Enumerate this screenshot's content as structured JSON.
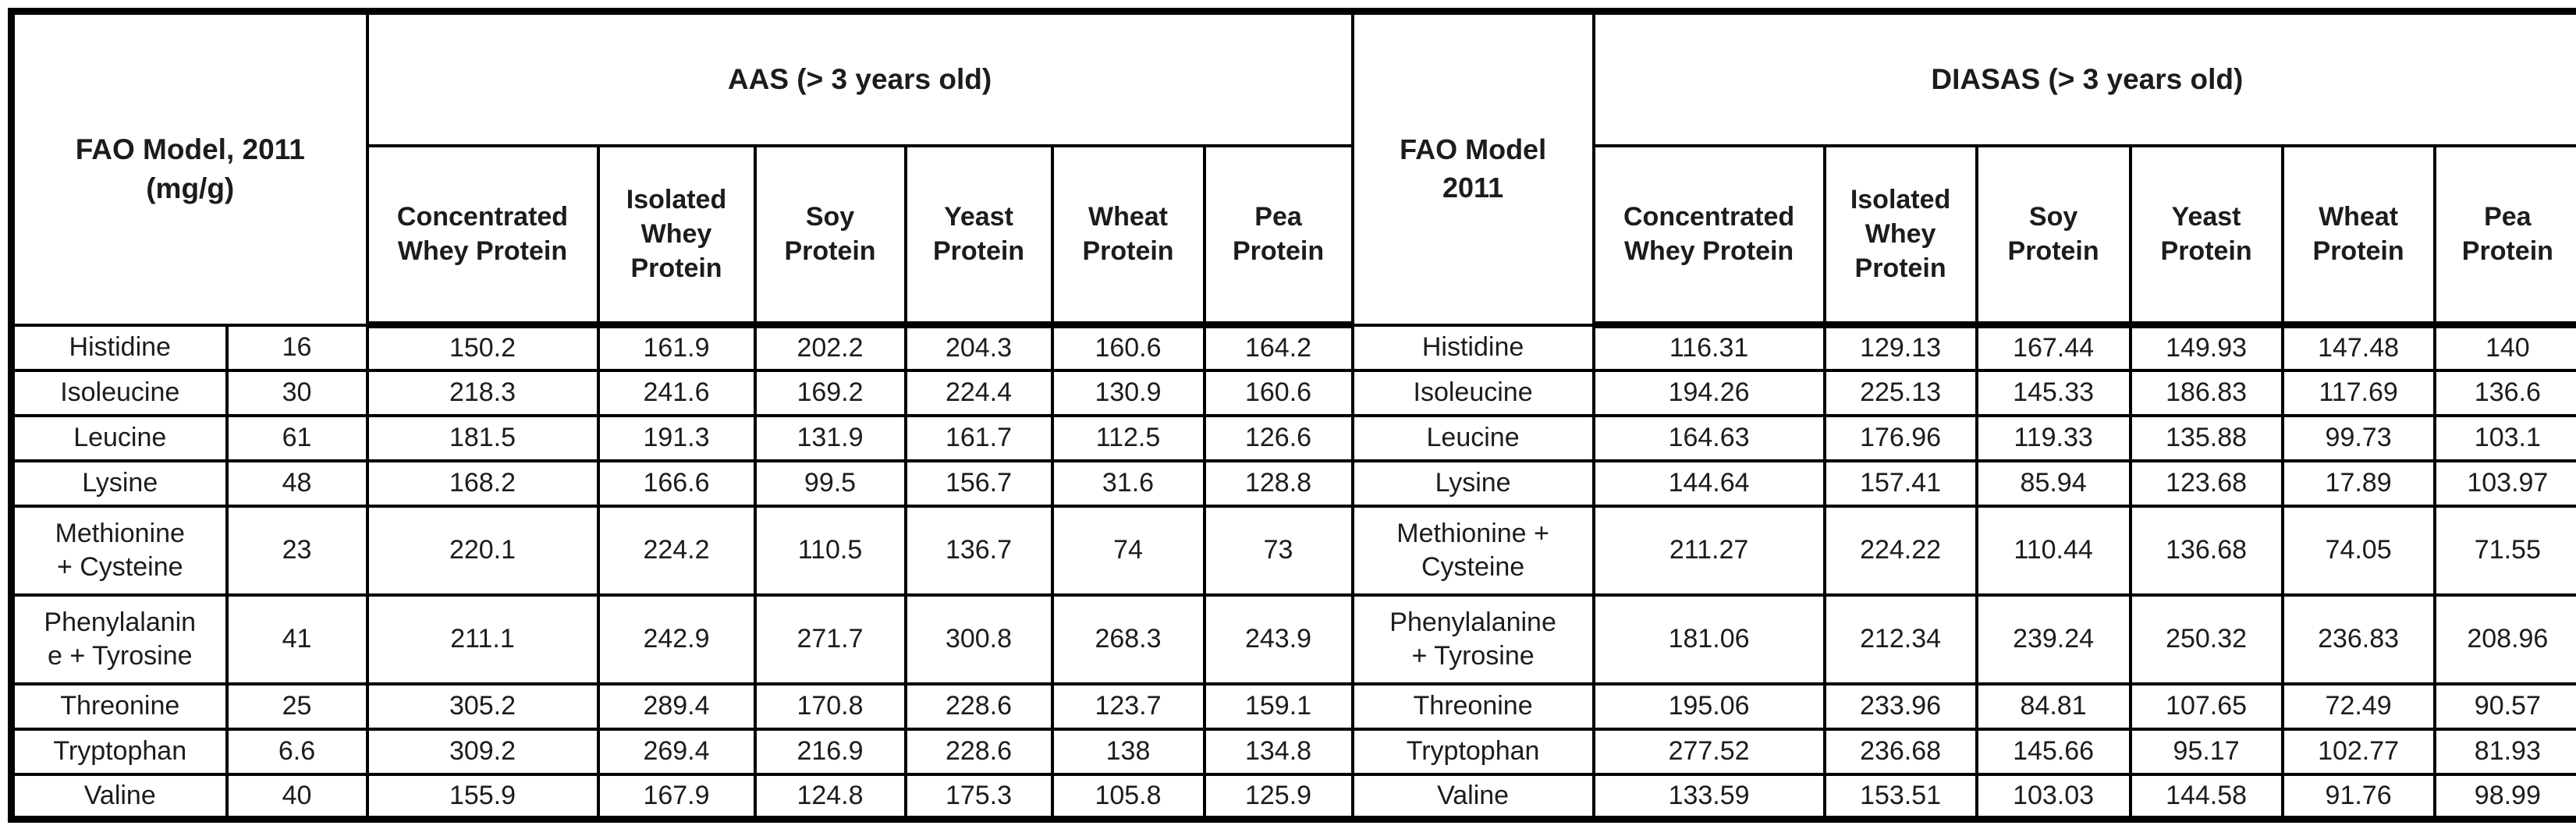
{
  "table": {
    "left_header": "FAO Model, 2011\n(mg/g)",
    "middle_header": "FAO Model\n2011",
    "groups": {
      "aas": "AAS (> 3 years old)",
      "diasas": "DIASAS (> 3 years old)"
    },
    "aas_columns": [
      "Concentrated\nWhey Protein",
      "Isolated\nWhey\nProtein",
      "Soy\nProtein",
      "Yeast\nProtein",
      "Wheat\nProtein",
      "Pea\nProtein"
    ],
    "diasas_columns": [
      "Concentrated\nWhey Protein",
      "Isolated\nWhey\nProtein",
      "Soy\nProtein",
      "Yeast\nProtein",
      "Wheat\nProtein",
      "Pea\nProtein"
    ],
    "rows": [
      {
        "name": "Histidine",
        "fao": "16",
        "aas": [
          "150.2",
          "161.9",
          "202.2",
          "204.3",
          "160.6",
          "164.2"
        ],
        "name_middle": "Histidine",
        "diasas": [
          "116.31",
          "129.13",
          "167.44",
          "149.93",
          "147.48",
          "140"
        ]
      },
      {
        "name": "Isoleucine",
        "fao": "30",
        "aas": [
          "218.3",
          "241.6",
          "169.2",
          "224.4",
          "130.9",
          "160.6"
        ],
        "name_middle": "Isoleucine",
        "diasas": [
          "194.26",
          "225.13",
          "145.33",
          "186.83",
          "117.69",
          "136.6"
        ]
      },
      {
        "name": "Leucine",
        "fao": "61",
        "aas": [
          "181.5",
          "191.3",
          "131.9",
          "161.7",
          "112.5",
          "126.6"
        ],
        "name_middle": "Leucine",
        "diasas": [
          "164.63",
          "176.96",
          "119.33",
          "135.88",
          "99.73",
          "103.1"
        ]
      },
      {
        "name": "Lysine",
        "fao": "48",
        "aas": [
          "168.2",
          "166.6",
          "99.5",
          "156.7",
          "31.6",
          "128.8"
        ],
        "name_middle": "Lysine",
        "diasas": [
          "144.64",
          "157.41",
          "85.94",
          "123.68",
          "17.89",
          "103.97"
        ]
      },
      {
        "name": "Methionine\n+ Cysteine",
        "fao": "23",
        "aas": [
          "220.1",
          "224.2",
          "110.5",
          "136.7",
          "74",
          "73"
        ],
        "name_middle": "Methionine +\nCysteine",
        "diasas": [
          "211.27",
          "224.22",
          "110.44",
          "136.68",
          "74.05",
          "71.55"
        ]
      },
      {
        "name": "Phenylalanin\ne + Tyrosine",
        "fao": "41",
        "aas": [
          "211.1",
          "242.9",
          "271.7",
          "300.8",
          "268.3",
          "243.9"
        ],
        "name_middle": "Phenylalanine\n+ Tyrosine",
        "diasas": [
          "181.06",
          "212.34",
          "239.24",
          "250.32",
          "236.83",
          "208.96"
        ]
      },
      {
        "name": "Threonine",
        "fao": "25",
        "aas": [
          "305.2",
          "289.4",
          "170.8",
          "228.6",
          "123.7",
          "159.1"
        ],
        "name_middle": "Threonine",
        "diasas": [
          "195.06",
          "233.96",
          "84.81",
          "107.65",
          "72.49",
          "90.57"
        ]
      },
      {
        "name": "Tryptophan",
        "fao": "6.6",
        "aas": [
          "309.2",
          "269.4",
          "216.9",
          "228.6",
          "138",
          "134.8"
        ],
        "name_middle": "Tryptophan",
        "diasas": [
          "277.52",
          "236.68",
          "145.66",
          "95.17",
          "102.77",
          "81.93"
        ]
      },
      {
        "name": "Valine",
        "fao": "40",
        "aas": [
          "155.9",
          "167.9",
          "124.8",
          "175.3",
          "105.8",
          "125.9"
        ],
        "name_middle": "Valine",
        "diasas": [
          "133.59",
          "153.51",
          "103.03",
          "144.58",
          "91.76",
          "98.99"
        ]
      }
    ]
  }
}
